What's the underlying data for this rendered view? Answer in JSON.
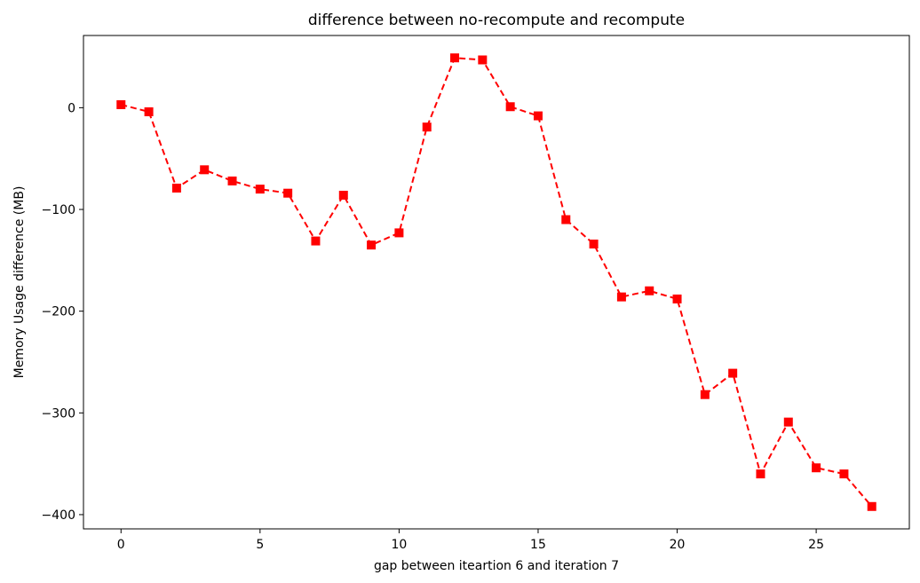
{
  "chart_data": {
    "type": "line",
    "title": "difference between no-recompute and recompute",
    "xlabel": "gap between iteartion 6 and iteration 7",
    "ylabel": "Memory Usage difference (MB)",
    "xlim": [
      -1.35,
      28.35
    ],
    "ylim": [
      -414,
      71
    ],
    "xticks": [
      0,
      5,
      10,
      15,
      20,
      25
    ],
    "xtick_labels": [
      "0",
      "5",
      "10",
      "15",
      "20",
      "25"
    ],
    "yticks": [
      0,
      -100,
      -200,
      -300,
      -400
    ],
    "ytick_labels": [
      "0",
      "−100",
      "−200",
      "−300",
      "−400"
    ],
    "grid": false,
    "series": [
      {
        "color": "#ff0000",
        "line_style": "dashed",
        "marker": "square",
        "x": [
          0,
          1,
          2,
          3,
          4,
          5,
          6,
          7,
          8,
          9,
          10,
          11,
          12,
          13,
          14,
          15,
          16,
          17,
          18,
          19,
          20,
          21,
          22,
          23,
          24,
          25,
          26,
          27
        ],
        "y": [
          3,
          -4,
          -79,
          -61,
          -72,
          -80,
          -84,
          -131,
          -86,
          -135,
          -123,
          -19,
          49,
          47,
          1,
          -8,
          -110,
          -134,
          -186,
          -180,
          -188,
          -282,
          -261,
          -360,
          -309,
          -354,
          -360,
          -392
        ]
      }
    ]
  }
}
